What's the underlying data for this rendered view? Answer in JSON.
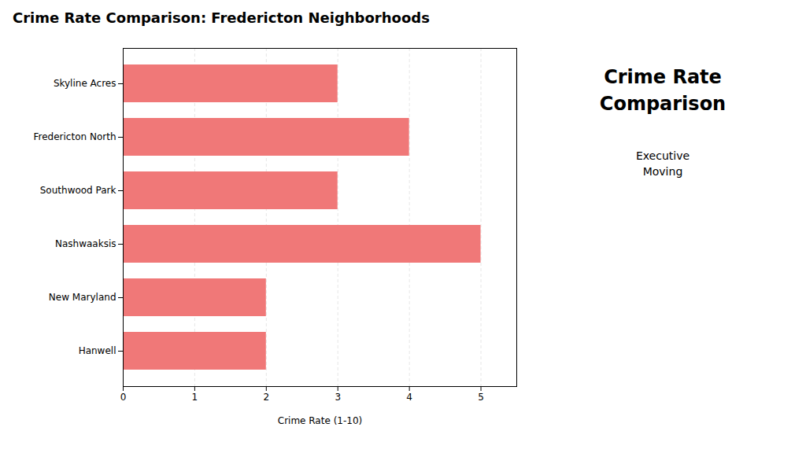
{
  "chart_data": {
    "type": "bar",
    "orientation": "horizontal",
    "title": "Crime Rate Comparison: Fredericton Neighborhoods",
    "categories": [
      "Skyline Acres",
      "Fredericton North",
      "Southwood Park",
      "Nashwaaksis",
      "New Maryland",
      "Hanwell"
    ],
    "values": [
      3,
      4,
      3,
      5,
      2,
      2
    ],
    "color": "#F07878",
    "xlabel": "Crime Rate (1-10)",
    "xlim": [
      0,
      5.5
    ],
    "xticks": [
      0,
      1,
      2,
      3,
      4,
      5
    ],
    "grid": true,
    "annotations": [
      "Crime Rate\nComparison",
      "Executive\nMoving"
    ]
  }
}
